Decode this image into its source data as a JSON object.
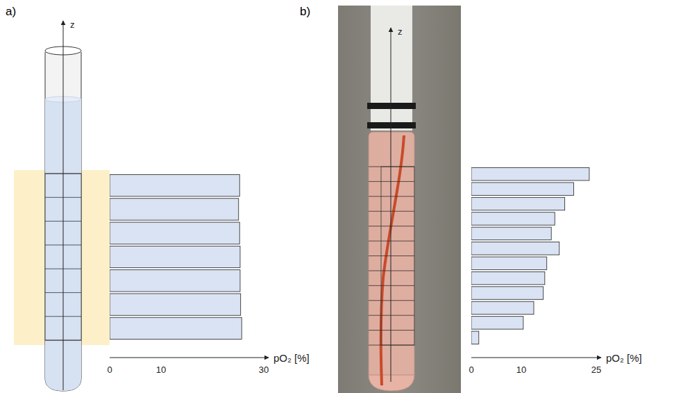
{
  "chart_data": [
    {
      "type": "bar",
      "orientation": "horizontal",
      "title": "a)",
      "ylabel": "z",
      "xlabel": "pO₂ [%]",
      "categories": [
        null,
        null,
        null,
        null,
        null,
        null,
        null
      ],
      "values": [
        25.7,
        25.5,
        25.4,
        25.4,
        25.3,
        25.1,
        25.3
      ],
      "color": "#dae3f3",
      "xlim": [
        0,
        30
      ],
      "xticks": [
        0,
        10,
        30
      ],
      "grid": false,
      "tick_labels": "x"
    },
    {
      "type": "bar",
      "orientation": "horizontal",
      "title": "b)",
      "ylabel": "z",
      "xlabel": "pO₂ [%]",
      "categories": [
        null,
        null,
        null,
        null,
        null,
        null,
        null,
        null,
        null,
        null,
        null,
        null
      ],
      "values": [
        1.5,
        10.4,
        12.5,
        14.4,
        14.7,
        15.1,
        17.6,
        16.0,
        16.7,
        18.7,
        20.5,
        23.6
      ],
      "color": "#dae3f3",
      "xlim": [
        0,
        25
      ],
      "xticks": [
        0,
        10,
        25
      ],
      "grid": false,
      "tick_labels": "x"
    }
  ]
}
